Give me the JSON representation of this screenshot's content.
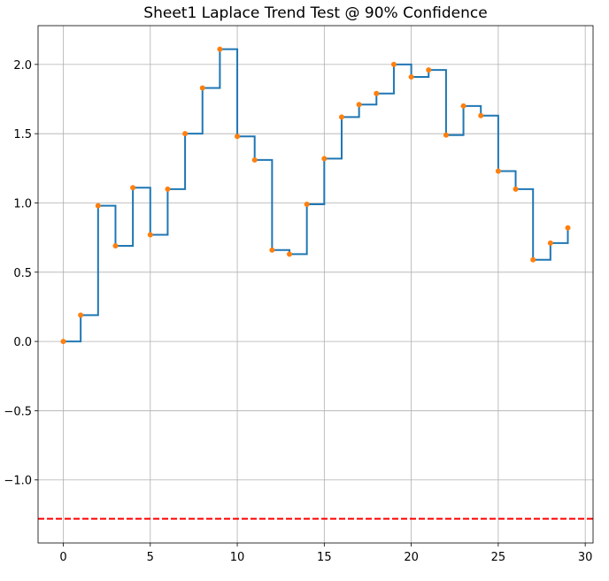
{
  "chart_data": {
    "type": "line",
    "title": "Sheet1 Laplace Trend Test @ 90% Confidence",
    "xlabel": "",
    "ylabel": "",
    "xlim": [
      -1.45,
      30.45
    ],
    "ylim": [
      -1.455,
      2.28
    ],
    "xticks": [
      0,
      5,
      10,
      15,
      20,
      25,
      30
    ],
    "yticks": [
      -1.0,
      -0.5,
      0.0,
      0.5,
      1.0,
      1.5,
      2.0
    ],
    "xtick_labels": [
      "0",
      "5",
      "10",
      "15",
      "20",
      "25",
      "30"
    ],
    "ytick_labels": [
      "−1.0",
      "−0.5",
      "0.0",
      "0.5",
      "1.0",
      "1.5",
      "2.0"
    ],
    "grid": true,
    "series": [
      {
        "style": "steps-post",
        "color": "#1f77b4",
        "marker_color": "#ff7f0e",
        "x": [
          0,
          1,
          2,
          3,
          4,
          5,
          6,
          7,
          8,
          9,
          10,
          11,
          12,
          13,
          14,
          15,
          16,
          17,
          18,
          19,
          20,
          21,
          22,
          23,
          24,
          25,
          26,
          27,
          28,
          29
        ],
        "y": [
          0.0,
          0.19,
          0.98,
          0.69,
          1.11,
          0.77,
          1.1,
          1.5,
          1.83,
          2.11,
          1.48,
          1.31,
          0.66,
          0.63,
          0.99,
          1.32,
          1.62,
          1.71,
          1.79,
          2.0,
          1.91,
          1.96,
          1.49,
          1.7,
          1.63,
          1.23,
          1.1,
          0.59,
          0.71,
          0.82
        ]
      }
    ],
    "reference_line": {
      "y": -1.28,
      "color": "#ff0000",
      "style": "dashed"
    }
  }
}
